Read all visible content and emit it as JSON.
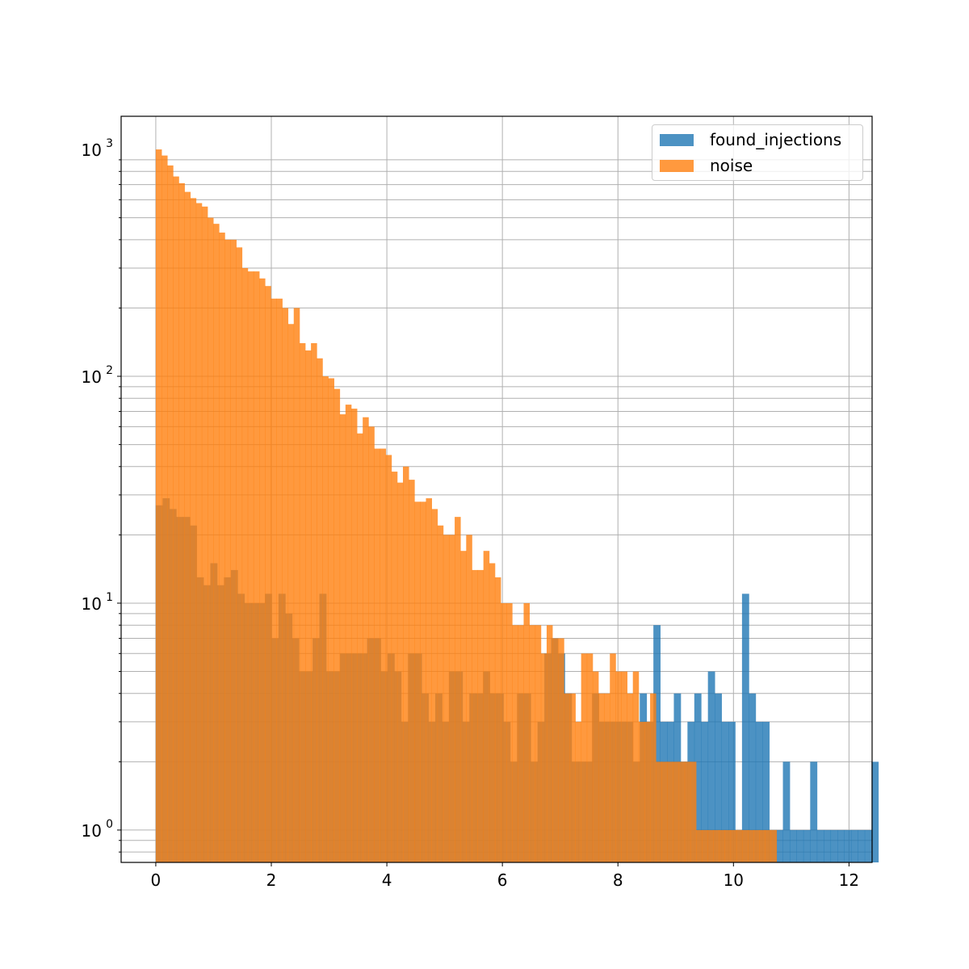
{
  "chart_data": {
    "type": "bar",
    "subtype": "histogram",
    "title": "",
    "xlabel": "",
    "ylabel": "",
    "yscale": "log",
    "xlim": [
      -0.6,
      12.4
    ],
    "ylim": [
      0.72,
      1400
    ],
    "xticks": [
      "0",
      "2",
      "4",
      "6",
      "8",
      "10",
      "12"
    ],
    "yticks": [
      {
        "value": 1,
        "base": "10",
        "exp": "0"
      },
      {
        "value": 10,
        "base": "10",
        "exp": "1"
      },
      {
        "value": 100,
        "base": "10",
        "exp": "2"
      },
      {
        "value": 1000,
        "base": "10",
        "exp": "3"
      }
    ],
    "grid": true,
    "legend_position": "top-right",
    "series": [
      {
        "name": "found_injections",
        "color": "#1f77b4",
        "alpha": 0.8,
        "bin_start": 0.0,
        "bin_width": 0.118,
        "counts": [
          27,
          29,
          26,
          24,
          24,
          22,
          13,
          12,
          15,
          12,
          13,
          14,
          11,
          10,
          10,
          10,
          11,
          7,
          11,
          9,
          7,
          5,
          5,
          7,
          11,
          5,
          5,
          6,
          6,
          6,
          6,
          7,
          7,
          5,
          6,
          5,
          3,
          6,
          6,
          4,
          3,
          4,
          3,
          5,
          5,
          3,
          4,
          4,
          5,
          4,
          4,
          3,
          2,
          4,
          4,
          2,
          3,
          6,
          7,
          6,
          4,
          2,
          2,
          2,
          4,
          3,
          3,
          3,
          3,
          3,
          2,
          4,
          3,
          8,
          3,
          3,
          4,
          2,
          3,
          4,
          3,
          5,
          4,
          3,
          3,
          1,
          11,
          4,
          3,
          3,
          1,
          1,
          2,
          1,
          1,
          1,
          2,
          1,
          1,
          1,
          1,
          1,
          1,
          1,
          1,
          2
        ]
      },
      {
        "name": "noise",
        "color": "#ff7f0e",
        "alpha": 0.8,
        "bin_start": 0.0,
        "bin_width": 0.0995,
        "counts": [
          1000,
          940,
          850,
          760,
          710,
          650,
          610,
          580,
          560,
          500,
          470,
          430,
          400,
          400,
          370,
          300,
          290,
          290,
          270,
          250,
          220,
          220,
          200,
          170,
          200,
          140,
          130,
          140,
          120,
          100,
          98,
          88,
          68,
          75,
          72,
          56,
          66,
          60,
          48,
          48,
          45,
          38,
          34,
          40,
          35,
          28,
          28,
          29,
          26,
          22,
          20,
          20,
          24,
          17,
          20,
          14,
          14,
          17,
          15,
          13,
          10,
          10,
          8,
          8,
          10,
          8,
          8,
          6,
          8,
          7,
          7,
          4,
          4,
          3,
          6,
          6,
          5,
          4,
          4,
          6,
          5,
          5,
          4,
          5,
          3,
          3,
          4,
          2,
          2,
          2,
          2,
          2,
          2,
          2,
          1,
          1,
          1,
          1,
          1,
          1,
          1,
          1,
          1,
          1,
          1,
          1,
          1,
          1
        ]
      }
    ]
  }
}
